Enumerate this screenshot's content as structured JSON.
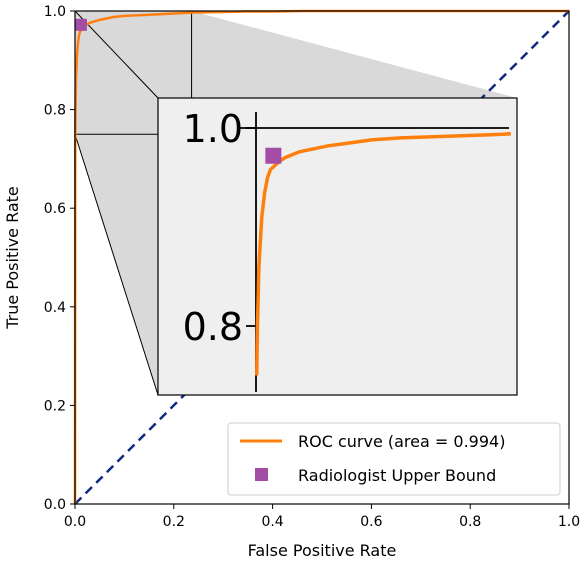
{
  "chart_data": {
    "type": "line",
    "xlabel": "False Positive Rate",
    "ylabel": "True Positive Rate",
    "xlim": [
      0,
      1
    ],
    "ylim": [
      0,
      1
    ],
    "xticks": [
      "0.0",
      "0.2",
      "0.4",
      "0.6",
      "0.8",
      "1.0"
    ],
    "yticks": [
      "0.0",
      "0.2",
      "0.4",
      "0.6",
      "0.8",
      "1.0"
    ],
    "grid": false,
    "legend_position": "bottom-right",
    "series": [
      {
        "name": "ROC curve (area = 0.994)",
        "color": "#ff7f0e",
        "x": [
          0.0,
          0.0005,
          0.001,
          0.002,
          0.004,
          0.006,
          0.008,
          0.01,
          0.013,
          0.016,
          0.02,
          0.025,
          0.03,
          0.04,
          0.05,
          0.06,
          0.07,
          0.08,
          0.09,
          0.1,
          0.12,
          0.14,
          0.16,
          0.18,
          0.2,
          0.22,
          0.24,
          0.3,
          0.35,
          0.4,
          0.46,
          0.6,
          0.8,
          1.0
        ],
        "y": [
          0.0,
          0.75,
          0.8,
          0.86,
          0.91,
          0.935,
          0.95,
          0.958,
          0.962,
          0.966,
          0.97,
          0.973,
          0.976,
          0.979,
          0.982,
          0.984,
          0.986,
          0.988,
          0.989,
          0.99,
          0.991,
          0.992,
          0.993,
          0.994,
          0.995,
          0.996,
          0.997,
          0.998,
          0.999,
          0.999,
          1.0,
          1.0,
          1.0,
          1.0
        ]
      },
      {
        "name": "",
        "color": "#0f2a80",
        "style": "dashed",
        "x": [
          0,
          1
        ],
        "y": [
          0,
          1
        ]
      }
    ],
    "points": [
      {
        "name": "Radiologist Upper Bound",
        "color": "#a44da6",
        "x": 0.012,
        "y": 0.972
      }
    ],
    "inset": {
      "source_xlim": [
        0,
        0.236
      ],
      "source_ylim": [
        0.75,
        1.0
      ],
      "yticks": [
        "0.8",
        "1.0"
      ]
    }
  }
}
